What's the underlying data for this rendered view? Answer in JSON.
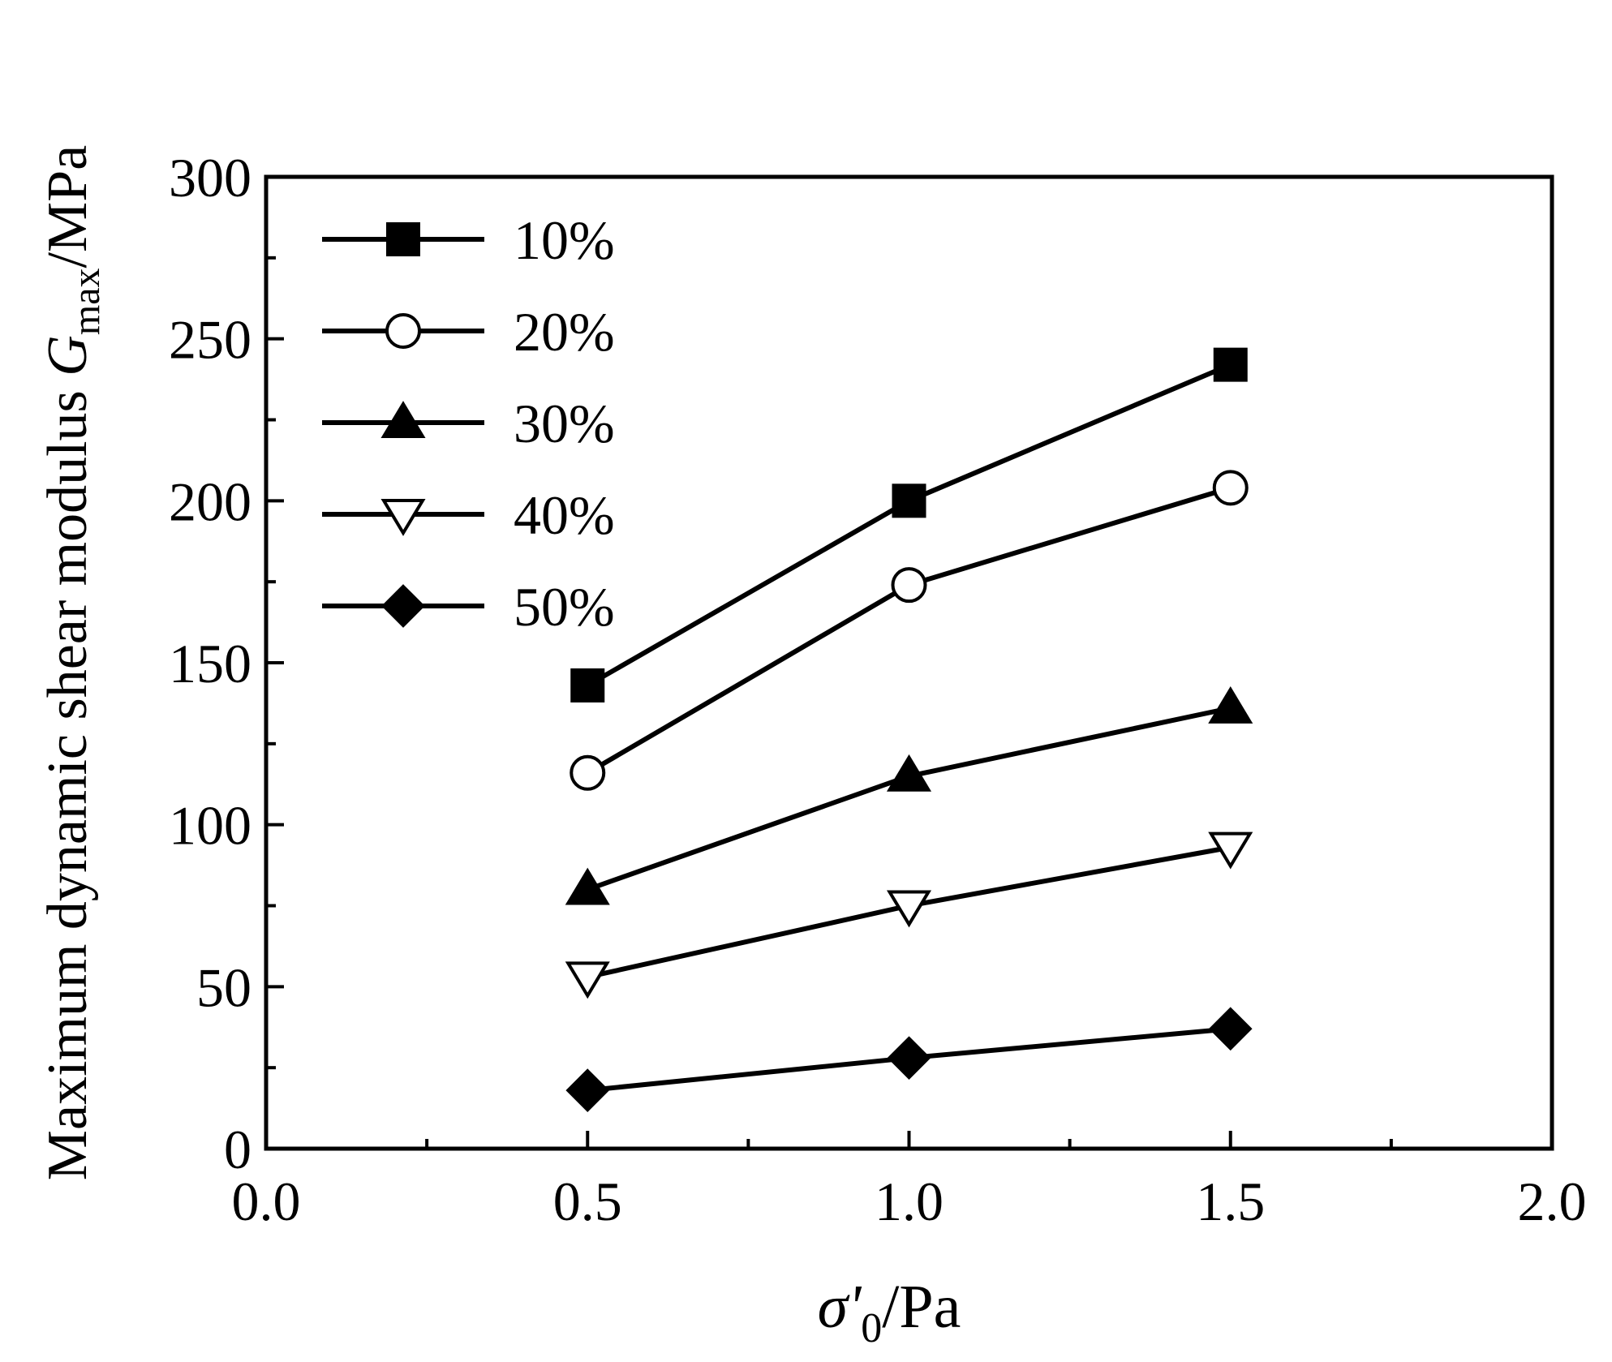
{
  "chart_data": {
    "type": "line",
    "title": "",
    "xlabel": {
      "symbol": "σ'",
      "subscript": "0",
      "unit": "/Pa"
    },
    "ylabel": {
      "prefix": "Maximum dynamic shear modulus ",
      "symbol": "G",
      "subscript": "max",
      "unit": "/MPa"
    },
    "xlim": [
      0.0,
      2.0
    ],
    "ylim": [
      0,
      300
    ],
    "xticks": [
      "0.0",
      "0.5",
      "1.0",
      "1.5",
      "2.0"
    ],
    "yticks": [
      "0",
      "50",
      "100",
      "150",
      "200",
      "250",
      "300"
    ],
    "grid": false,
    "legend_position": "top-left",
    "x": [
      0.5,
      1.0,
      1.5
    ],
    "series": [
      {
        "name": "10%",
        "marker": "square-filled",
        "values": [
          143,
          200,
          242
        ]
      },
      {
        "name": "20%",
        "marker": "circle-open",
        "values": [
          116,
          174,
          204
        ]
      },
      {
        "name": "30%",
        "marker": "triangle-up-filled",
        "values": [
          80,
          115,
          136
        ]
      },
      {
        "name": "40%",
        "marker": "triangle-down-open",
        "values": [
          53,
          75,
          93
        ]
      },
      {
        "name": "50%",
        "marker": "diamond-filled",
        "values": [
          18,
          28,
          37
        ]
      }
    ]
  }
}
